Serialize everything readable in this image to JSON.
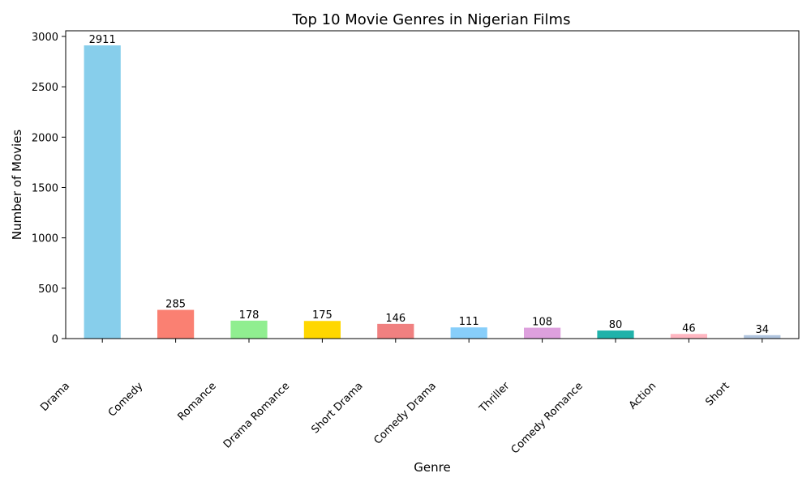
{
  "chart_data": {
    "type": "bar",
    "title": "Top 10 Movie Genres in Nigerian Films",
    "xlabel": "Genre",
    "ylabel": "Number of Movies",
    "categories": [
      "Drama",
      "Comedy",
      "Romance",
      "Drama Romance",
      "Short Drama",
      "Comedy Drama",
      "Thriller",
      "Comedy Romance",
      "Action",
      "Short"
    ],
    "values": [
      2911,
      285,
      178,
      175,
      146,
      111,
      108,
      80,
      46,
      34
    ],
    "colors": [
      "#87ceeb",
      "#fa8072",
      "#90ee90",
      "#ffd700",
      "#f08080",
      "#87cefa",
      "#dda0dd",
      "#20b2aa",
      "#ffb6c1",
      "#b0c4de"
    ],
    "ylim": [
      0,
      3056
    ],
    "yticks": [
      0,
      500,
      1000,
      1500,
      2000,
      2500,
      3000
    ],
    "grid": false,
    "legend": false
  }
}
